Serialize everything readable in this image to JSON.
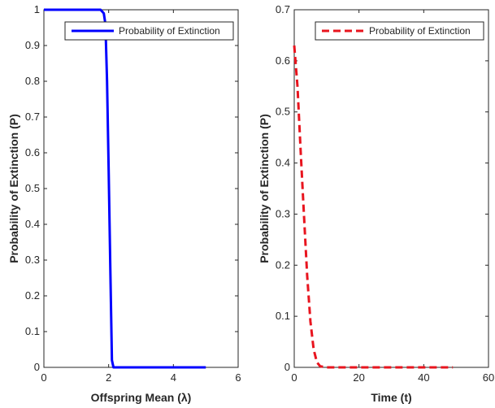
{
  "chart_data": [
    {
      "type": "line",
      "xlabel": "Offspring Mean (λ)",
      "ylabel": "Probability of Extinction (P)",
      "xlim": [
        0,
        6
      ],
      "ylim": [
        0,
        1
      ],
      "xticks": [
        "0",
        "2",
        "4",
        "6"
      ],
      "yticks": [
        "0",
        "0.1",
        "0.2",
        "0.3",
        "0.4",
        "0.5",
        "0.6",
        "0.7",
        "0.8",
        "0.9",
        "1"
      ],
      "legend_position": "top-right",
      "grid": false,
      "series": [
        {
          "name": "Probability of Extinction",
          "color": "#0000ff",
          "line_style": "solid",
          "x": [
            0,
            0.5,
            1.0,
            1.5,
            1.75,
            1.85,
            1.9,
            1.95,
            2.0,
            2.05,
            2.1,
            2.15,
            3.0,
            4.0,
            5.0
          ],
          "y": [
            1,
            1,
            1,
            1,
            1,
            0.99,
            0.96,
            0.8,
            0.55,
            0.28,
            0.02,
            0,
            0,
            0,
            0
          ]
        }
      ]
    },
    {
      "type": "line",
      "xlabel": "Time (t)",
      "ylabel": "Probability of Extinction (P)",
      "xlim": [
        0,
        60
      ],
      "ylim": [
        0,
        0.7
      ],
      "xticks": [
        "0",
        "20",
        "40",
        "60"
      ],
      "yticks": [
        "0",
        "0.1",
        "0.2",
        "0.3",
        "0.4",
        "0.5",
        "0.6",
        "0.7"
      ],
      "legend_position": "top-right",
      "grid": false,
      "series": [
        {
          "name": "Probability of Extinction",
          "color": "#e8141e",
          "line_style": "dashed",
          "x": [
            0,
            1,
            2,
            3,
            4,
            5,
            6,
            7,
            8,
            10,
            20,
            30,
            40,
            49
          ],
          "y": [
            0.63,
            0.55,
            0.42,
            0.3,
            0.18,
            0.09,
            0.035,
            0.01,
            0.002,
            0,
            0,
            0,
            0,
            0
          ]
        }
      ]
    }
  ]
}
